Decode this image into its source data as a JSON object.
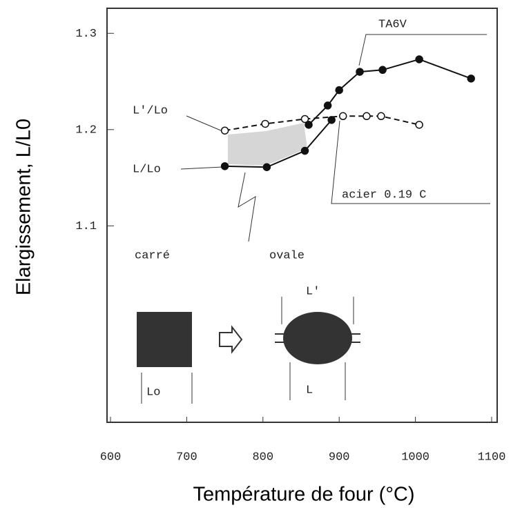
{
  "chart_data": {
    "type": "line",
    "x_label": "Température de four (°C)",
    "y_label": "Elargissement, L/L0",
    "xlim": [
      600,
      1100
    ],
    "xticks": [
      600,
      700,
      800,
      900,
      1000,
      1100
    ],
    "ylim": [
      0.896,
      1.326
    ],
    "yticks": [
      1.1,
      1.2,
      1.3
    ],
    "series": [
      {
        "name": "TA6V",
        "color": "#111111",
        "dash": false,
        "marker": "filled",
        "x": [
          860,
          885,
          900,
          927,
          957,
          1005,
          1073
        ],
        "values": [
          1.205,
          1.225,
          1.241,
          1.26,
          1.262,
          1.273,
          1.253
        ]
      },
      {
        "name": "L'/Lo",
        "color": "#111111",
        "dash": true,
        "marker": "open",
        "x": [
          750,
          803,
          855,
          905,
          936,
          955,
          1005
        ],
        "values": [
          1.199,
          1.206,
          1.211,
          1.214,
          1.214,
          1.214,
          1.205
        ]
      },
      {
        "name": "L/Lo",
        "color": "#111111",
        "dash": false,
        "marker": "filled",
        "x": [
          750,
          805,
          855,
          890
        ],
        "values": [
          1.162,
          1.161,
          1.178,
          1.21
        ]
      }
    ],
    "annotations": [
      "acier 0.19 C",
      "carré",
      "ovale",
      "L'",
      "L",
      "Lo"
    ]
  }
}
